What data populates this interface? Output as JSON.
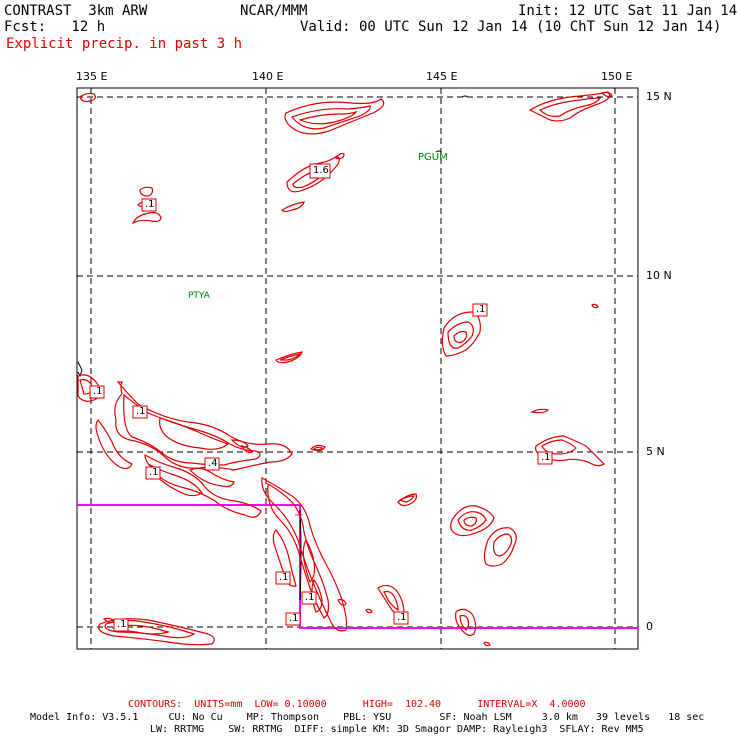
{
  "header": {
    "model": "CONTRAST  3km ARW",
    "org": "NCAR/MMM",
    "init": "Init: 12 UTC Sat 11 Jan 14",
    "fcst": "Fcst:   12 h",
    "valid": "Valid: 00 UTC Sun 12 Jan 14 (10 ChT Sun 12 Jan 14)",
    "field": "Explicit precip. in past 3 h"
  },
  "axes": {
    "lon_labels": [
      "135 E",
      "140 E",
      "145 E",
      "150 E"
    ],
    "lat_labels": [
      "15 N",
      "10 N",
      "5 N",
      "0"
    ]
  },
  "stations": [
    "PGUM",
    "PTYA"
  ],
  "contour_labels": [
    ".1",
    "1.6",
    ".1",
    ".1",
    ".1",
    ".1",
    ".1",
    ".4",
    ".1",
    ".1",
    ".1",
    ".1",
    ".1",
    ".1",
    ".1"
  ],
  "footer": {
    "contours": "CONTOURS:  UNITS=mm  LOW= 0.10000      HIGH=  102.40      INTERVAL=X  4.0000",
    "model_info_1": "Model Info: V3.5.1     CU: No Cu    MP: Thompson    PBL: YSU        SF: Noah LSM     3.0 km   39 levels   18 sec",
    "model_info_2": "LW: RRTMG    SW: RRTMG  DIFF: simple KM: 3D Smagor DAMP: Rayleigh3  SFLAY: Rev MM5"
  },
  "colors": {
    "precip": "#e00000",
    "station": "#008000",
    "domain_box": "#ff00ff",
    "coast": "#000000"
  }
}
